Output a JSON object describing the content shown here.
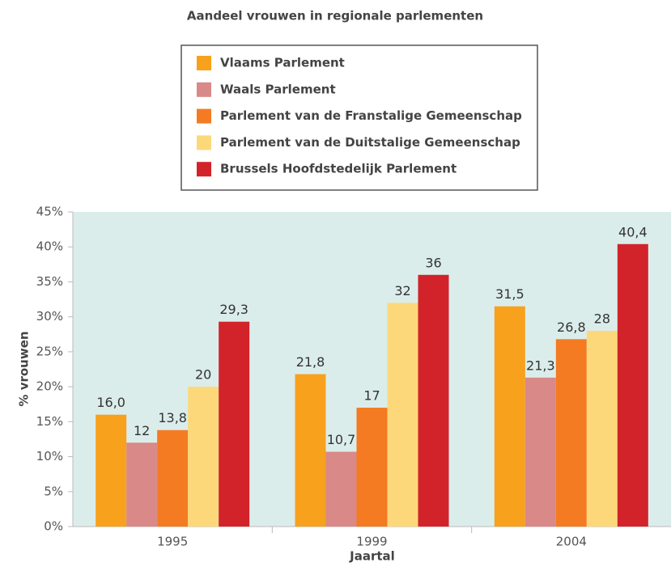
{
  "chart_data": {
    "type": "bar",
    "title": "Aandeel vrouwen in regionale parlementen",
    "x_label": "Jaartal",
    "y_label": "% vrouwen",
    "categories": [
      "1995",
      "1999",
      "2004"
    ],
    "series": [
      {
        "name": "Vlaams Parlement",
        "color": "#f7a11c",
        "values": [
          16,
          21.8,
          31.5
        ],
        "value_labels": [
          "16,0",
          "21,8",
          "31,5"
        ]
      },
      {
        "name": "Waals Parlement",
        "color": "#d98987",
        "values": [
          12,
          10.7,
          21.3
        ],
        "value_labels": [
          "12",
          "10,7",
          "21,3"
        ]
      },
      {
        "name": "Parlement van de Franstalige Gemeenschap",
        "color": "#f47b22",
        "values": [
          13.8,
          17,
          26.8
        ],
        "value_labels": [
          "13,8",
          "17",
          "26,8"
        ]
      },
      {
        "name": "Parlement van de Duitstalige Gemeenschap",
        "color": "#fdd87b",
        "values": [
          20,
          32,
          28
        ],
        "value_labels": [
          "20",
          "32",
          "28"
        ]
      },
      {
        "name": "Brussels Hoofdstedelijk Parlement",
        "color": "#d2232a",
        "values": [
          29.3,
          36,
          40.4
        ],
        "value_labels": [
          "29,3",
          "36",
          "40,4"
        ]
      }
    ],
    "ylim": [
      0,
      45
    ],
    "yticks": [
      {
        "value": 0,
        "label": "0%"
      },
      {
        "value": 5,
        "label": "5%"
      },
      {
        "value": 10,
        "label": "10%"
      },
      {
        "value": 15,
        "label": "15%"
      },
      {
        "value": 20,
        "label": "20%"
      },
      {
        "value": 25,
        "label": "25%"
      },
      {
        "value": 30,
        "label": "30%"
      },
      {
        "value": 35,
        "label": "35%"
      },
      {
        "value": 40,
        "label": "40%"
      },
      {
        "value": 45,
        "label": "45%"
      }
    ],
    "grid": false,
    "plot_background": "#dbedeb"
  }
}
